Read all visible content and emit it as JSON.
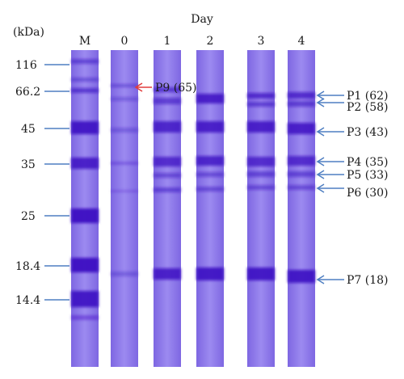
{
  "figure": {
    "unit_label": "(kDa)",
    "day_label": "Day",
    "lanes": [
      {
        "id": "M",
        "label": "M"
      },
      {
        "id": "d0",
        "label": "0"
      },
      {
        "id": "d1",
        "label": "1"
      },
      {
        "id": "d2",
        "label": "2"
      },
      {
        "id": "d3",
        "label": "3"
      },
      {
        "id": "d4",
        "label": "4"
      }
    ],
    "markers": [
      {
        "label": "116",
        "kda": 116
      },
      {
        "label": "66.2",
        "kda": 66.2
      },
      {
        "label": "45",
        "kda": 45
      },
      {
        "label": "35",
        "kda": 35
      },
      {
        "label": "25",
        "kda": 25
      },
      {
        "label": "18.4",
        "kda": 18.4
      },
      {
        "label": "14.4",
        "kda": 14.4
      }
    ],
    "annotations": [
      {
        "label": "P9 (65)",
        "lane": "d0",
        "color": "#e23b3b"
      },
      {
        "label": "P1 (62)",
        "lane": "d4",
        "color": "#4f7fc2"
      },
      {
        "label": "P2 (58)",
        "lane": "d4",
        "color": "#4f7fc2"
      },
      {
        "label": "P3 (43)",
        "lane": "d4",
        "color": "#4f7fc2"
      },
      {
        "label": "P4 (35)",
        "lane": "d4",
        "color": "#4f7fc2"
      },
      {
        "label": "P5 (33)",
        "lane": "d4",
        "color": "#4f7fc2"
      },
      {
        "label": "P6 (30)",
        "lane": "d4",
        "color": "#4f7fc2"
      },
      {
        "label": "P7 (18)",
        "lane": "d4",
        "color": "#4f7fc2"
      }
    ],
    "colors": {
      "lane_bg": "#8a74e8",
      "band": "#3c10c2",
      "marker_line": "#4f7fc2",
      "annotation_red": "#e23b3b",
      "annotation_blue": "#4f7fc2"
    }
  }
}
